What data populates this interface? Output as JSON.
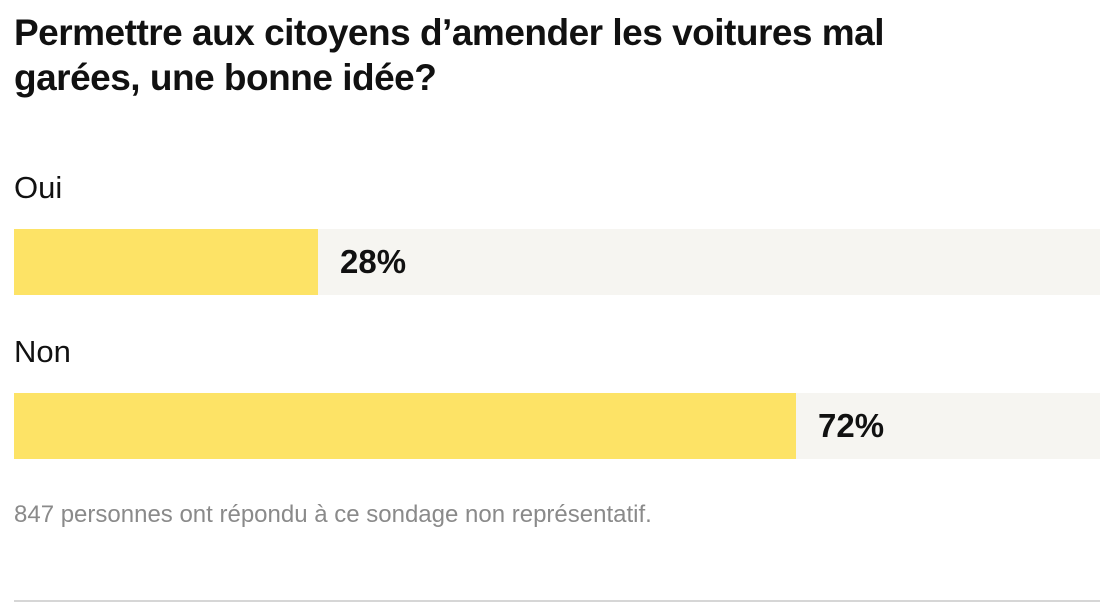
{
  "poll": {
    "title": "Permettre aux citoyens d’amender les voitures mal garées, une bonne idée?",
    "footnote": "847 personnes ont répondu à ce sondage non représentatif."
  },
  "colors": {
    "bar_fill": "#fde366",
    "bar_track": "#f6f5f1",
    "text": "#111111",
    "footnote": "#8a8a8a",
    "divider": "#d6d6d6"
  },
  "chart_data": {
    "type": "bar",
    "orientation": "horizontal",
    "categories": [
      "Oui",
      "Non"
    ],
    "values": [
      28,
      72
    ],
    "value_labels": [
      "28%",
      "72%"
    ],
    "unit": "%",
    "xlim": [
      0,
      100
    ],
    "grid": false,
    "legend": "none"
  }
}
